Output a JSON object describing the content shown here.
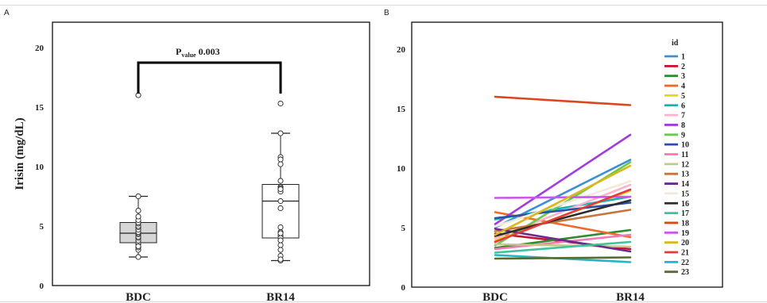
{
  "chart_data": [
    {
      "type": "box",
      "panel_label": "A",
      "categories": [
        "BDC",
        "BR14"
      ],
      "ylabel": "Irisin (mg/dL)",
      "ylim": [
        0,
        20
      ],
      "yticks": [
        0,
        5,
        10,
        15,
        20
      ],
      "boxes": [
        {
          "name": "BDC",
          "fill": "#d6d6d6",
          "whisker_low": 2.4,
          "q1": 3.6,
          "median": 4.4,
          "q3": 5.3,
          "whisker_high": 7.5
        },
        {
          "name": "BR14",
          "fill": "#ffffff",
          "whisker_low": 2.1,
          "q1": 4.0,
          "median": 7.1,
          "q3": 8.5,
          "whisker_high": 12.8
        }
      ],
      "points": {
        "BDC": [
          16.0,
          2.4,
          3.0,
          3.2,
          3.5,
          3.6,
          3.8,
          4.0,
          4.1,
          4.3,
          4.4,
          4.4,
          4.5,
          4.7,
          4.9,
          5.0,
          5.2,
          5.3,
          5.5,
          5.8,
          6.3,
          7.5,
          3.3
        ],
        "BR14": [
          15.3,
          12.8,
          10.8,
          10.6,
          10.2,
          8.8,
          8.3,
          8.2,
          7.9,
          7.1,
          6.5,
          4.9,
          4.5,
          4.2,
          4.0,
          3.8,
          3.4,
          3.0,
          2.5,
          2.1,
          8.1,
          4.4,
          2.2
        ]
      },
      "annotation": {
        "p_label": "P",
        "p_sub": "value",
        "p_text": " 0.003"
      }
    },
    {
      "type": "line",
      "panel_label": "B",
      "x": [
        "BDC",
        "BR14"
      ],
      "ylim": [
        0,
        20
      ],
      "yticks": [
        0,
        5,
        10,
        15,
        20
      ],
      "legend_title": "id",
      "legend_position": "right",
      "series": [
        {
          "name": "1",
          "color": "#3b8fd8",
          "values": [
            5.0,
            10.7
          ]
        },
        {
          "name": "2",
          "color": "#c8102e",
          "values": [
            4.5,
            3.2
          ]
        },
        {
          "name": "3",
          "color": "#2e8b2e",
          "values": [
            3.3,
            4.8
          ]
        },
        {
          "name": "4",
          "color": "#f06a2a",
          "values": [
            6.3,
            4.2
          ]
        },
        {
          "name": "5",
          "color": "#e8d71e",
          "values": [
            3.9,
            8.1
          ]
        },
        {
          "name": "6",
          "color": "#13b3b3",
          "values": [
            5.7,
            7.6
          ]
        },
        {
          "name": "7",
          "color": "#ffb3c9",
          "values": [
            4.1,
            8.6
          ]
        },
        {
          "name": "8",
          "color": "#a03ce0",
          "values": [
            5.3,
            12.8
          ]
        },
        {
          "name": "9",
          "color": "#6cc850",
          "values": [
            3.5,
            10.5
          ]
        },
        {
          "name": "10",
          "color": "#2b4fa8",
          "values": [
            5.8,
            7.1
          ]
        },
        {
          "name": "11",
          "color": "#f57ab4",
          "values": [
            3.2,
            4.4
          ]
        },
        {
          "name": "12",
          "color": "#c2c98a",
          "values": [
            3.6,
            3.4
          ]
        },
        {
          "name": "13",
          "color": "#c8753a",
          "values": [
            4.7,
            6.5
          ]
        },
        {
          "name": "14",
          "color": "#6b2a8c",
          "values": [
            4.9,
            3.0
          ]
        },
        {
          "name": "15",
          "color": "#f1ead8",
          "values": [
            5.1,
            8.9
          ]
        },
        {
          "name": "16",
          "color": "#2c2c2c",
          "values": [
            4.3,
            7.3
          ]
        },
        {
          "name": "17",
          "color": "#3cc49a",
          "values": [
            2.9,
            3.8
          ]
        },
        {
          "name": "18",
          "color": "#d9471f",
          "values": [
            16.0,
            15.3
          ]
        },
        {
          "name": "19",
          "color": "#cc55ee",
          "values": [
            7.5,
            7.6
          ]
        },
        {
          "name": "20",
          "color": "#d8b81a",
          "values": [
            4.4,
            10.2
          ]
        },
        {
          "name": "21",
          "color": "#e83a3a",
          "values": [
            3.8,
            8.2
          ]
        },
        {
          "name": "22",
          "color": "#24b6c8",
          "values": [
            2.7,
            2.1
          ]
        },
        {
          "name": "23",
          "color": "#5a6b2e",
          "values": [
            2.4,
            2.5
          ]
        }
      ]
    }
  ]
}
